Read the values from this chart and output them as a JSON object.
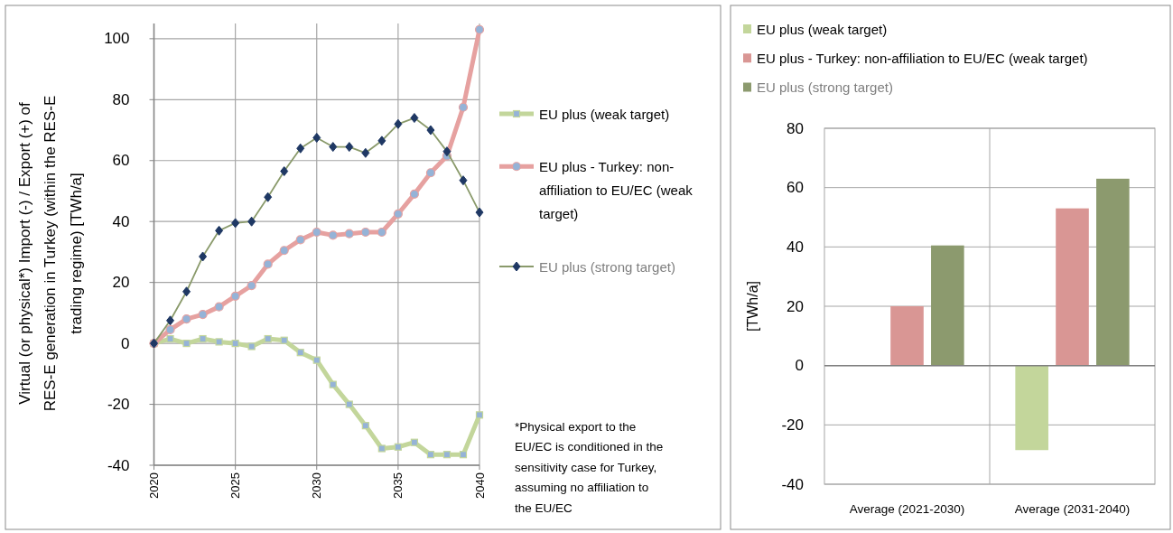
{
  "chart_data": [
    {
      "type": "line",
      "x": [
        2020,
        2021,
        2022,
        2023,
        2024,
        2025,
        2026,
        2027,
        2028,
        2029,
        2030,
        2031,
        2032,
        2033,
        2034,
        2035,
        2036,
        2037,
        2038,
        2039,
        2040
      ],
      "xlim": [
        2020,
        2040
      ],
      "xticks": [
        2020,
        2025,
        2030,
        2035,
        2040
      ],
      "ylim": [
        -40,
        105
      ],
      "yticks": [
        -40,
        -20,
        0,
        20,
        40,
        60,
        80,
        100
      ],
      "ylabel": "Virtual (or physical*) Import (-) / Export (+) of RES-E generation in Turkey (within the RES-E trading regime) [TWh/a]",
      "grid": true,
      "legend": "right",
      "series": [
        {
          "name": "EU plus (weak target)",
          "color": "#c3d69b",
          "marker": "square",
          "values": [
            0,
            1.5,
            0,
            1.5,
            0.5,
            0,
            -1,
            1.5,
            1,
            -3,
            -5.5,
            -13.5,
            -20,
            -27,
            -34.5,
            -34,
            -32.5,
            -36.5,
            -36.5,
            -36.5,
            -23.5
          ]
        },
        {
          "name": "EU plus - Turkey: non-affiliation to EU/EC (weak target)",
          "color": "#e6a1a0",
          "marker": "circle",
          "values": [
            0,
            4.5,
            8,
            9.5,
            12,
            15.5,
            19,
            26,
            30.5,
            34,
            36.5,
            35.5,
            36,
            36.5,
            36.5,
            42.5,
            49,
            56,
            61.5,
            77.5,
            103
          ]
        },
        {
          "name": "EU plus (strong target)",
          "color": "#8a9a6b",
          "marker": "diamond",
          "values": [
            0,
            7.5,
            17,
            28.5,
            37,
            39.5,
            40,
            48,
            56.5,
            64,
            67.5,
            64.5,
            64.5,
            62.5,
            66.5,
            72,
            74,
            70,
            63,
            53.5,
            43
          ]
        }
      ],
      "annotations": [
        "*Physical export to the EU/EC is conditioned in the sensitivity case for Turkey, assuming no affiliation to the EU/EC"
      ]
    },
    {
      "type": "bar",
      "categories": [
        "Average (2021-2030)",
        "Average (2031-2040)"
      ],
      "ylim": [
        -40,
        80
      ],
      "yticks": [
        -40,
        -20,
        0,
        20,
        40,
        60,
        80
      ],
      "ylabel": "[TWh/a]",
      "grid": true,
      "legend": "top left",
      "series": [
        {
          "name": "EU plus (weak target)",
          "color": "#c3d69b",
          "values": [
            null,
            -28.5
          ]
        },
        {
          "name": "EU plus - Turkey: non-affiliation to EU/EC (weak target)",
          "color": "#d99694",
          "values": [
            20,
            53
          ]
        },
        {
          "name": "EU plus (strong target)",
          "color": "#8c9a6e",
          "values": [
            40.5,
            63
          ]
        }
      ]
    }
  ]
}
